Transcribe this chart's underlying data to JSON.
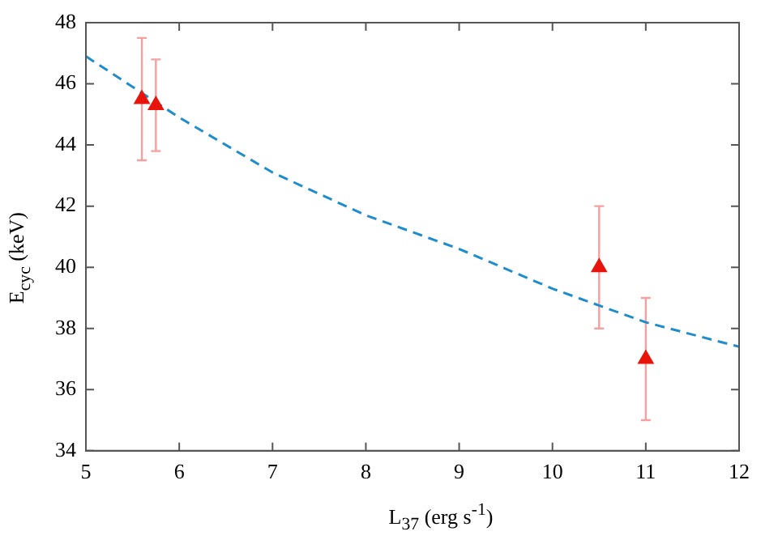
{
  "chart_data": {
    "type": "scatter",
    "xlabel": "L$_{37}$ (erg s$^{-1}$)",
    "ylabel": "E$_{cyc}$ (keV)",
    "xlim": [
      5,
      12
    ],
    "xticks": [
      5,
      6,
      7,
      8,
      9,
      10,
      11,
      12
    ],
    "ylim": [
      34,
      48
    ],
    "yticks": [
      34,
      36,
      38,
      40,
      42,
      44,
      46,
      48
    ],
    "grid": false,
    "legend": false,
    "series": [
      {
        "color": "#e8140c",
        "marker": "triangle",
        "x": [
          5.6,
          5.75,
          10.5,
          11
        ],
        "values": [
          45.5,
          45.3,
          40,
          37
        ],
        "errors": [
          [
            43.5,
            47.5
          ],
          [
            43.8,
            46.8
          ],
          [
            38,
            42
          ],
          [
            35,
            39
          ]
        ]
      },
      {
        "type": "line",
        "color": "#1f8ccc",
        "line_style": "dashed",
        "marker": "none",
        "x": [
          5,
          6,
          7,
          8,
          9,
          10,
          11,
          12
        ],
        "values": [
          46.9,
          44.9,
          43.1,
          41.7,
          40.6,
          39.3,
          38.2,
          37.4
        ]
      }
    ]
  }
}
